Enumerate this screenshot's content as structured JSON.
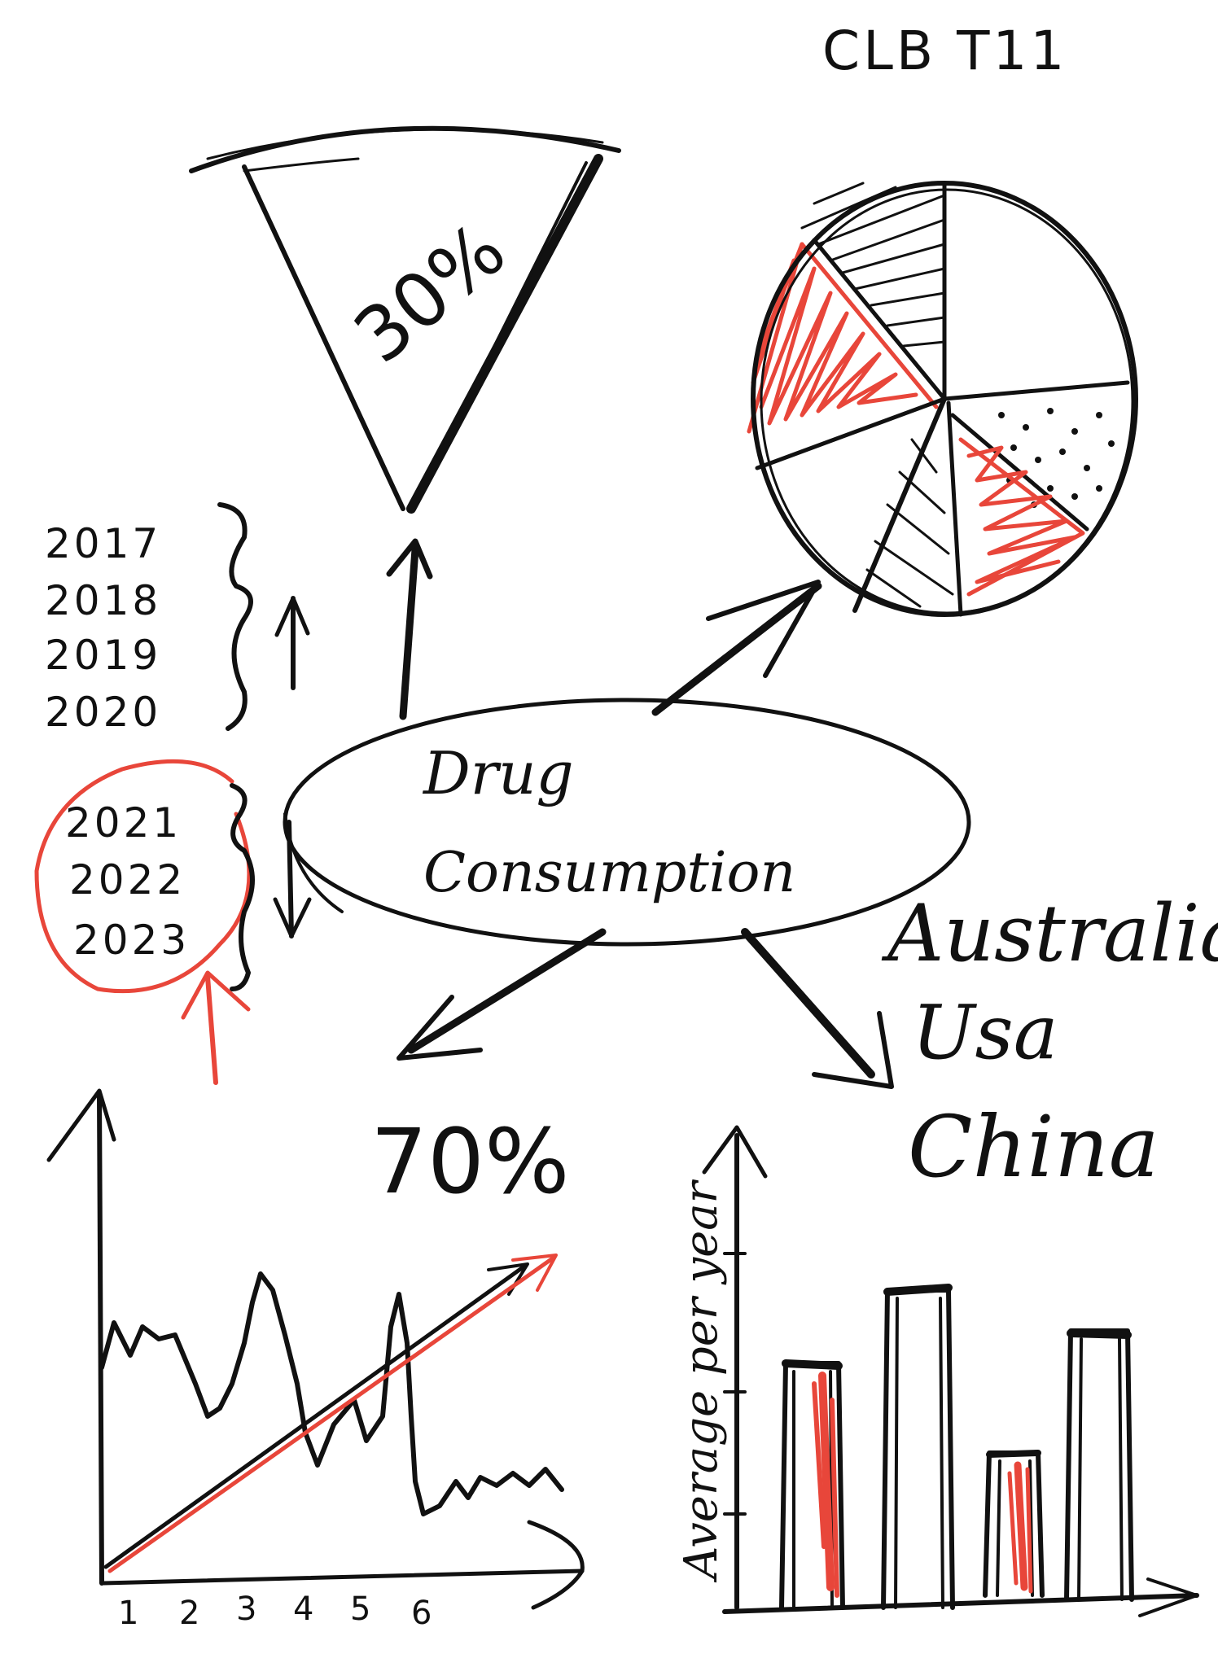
{
  "header_code": "CLB T11",
  "center_label": {
    "line1": "Drug",
    "line2": "Consumption"
  },
  "slice_percent": "30%",
  "remaining_percent": "70%",
  "years_group_1": [
    "2017",
    "2018",
    "2019",
    "2020"
  ],
  "years_group_2": [
    "2021",
    "2022",
    "2023"
  ],
  "countries": [
    "Australia",
    "Usa",
    "China"
  ],
  "line_chart_ticks": [
    "1",
    "2",
    "3",
    "4",
    "5",
    "6"
  ],
  "line_chart_x_end": "5",
  "bar_chart_ylabel": "Average per year",
  "colors": {
    "ink": "#111111",
    "accent_red": "#e8463a",
    "paper": "#ffffff"
  }
}
